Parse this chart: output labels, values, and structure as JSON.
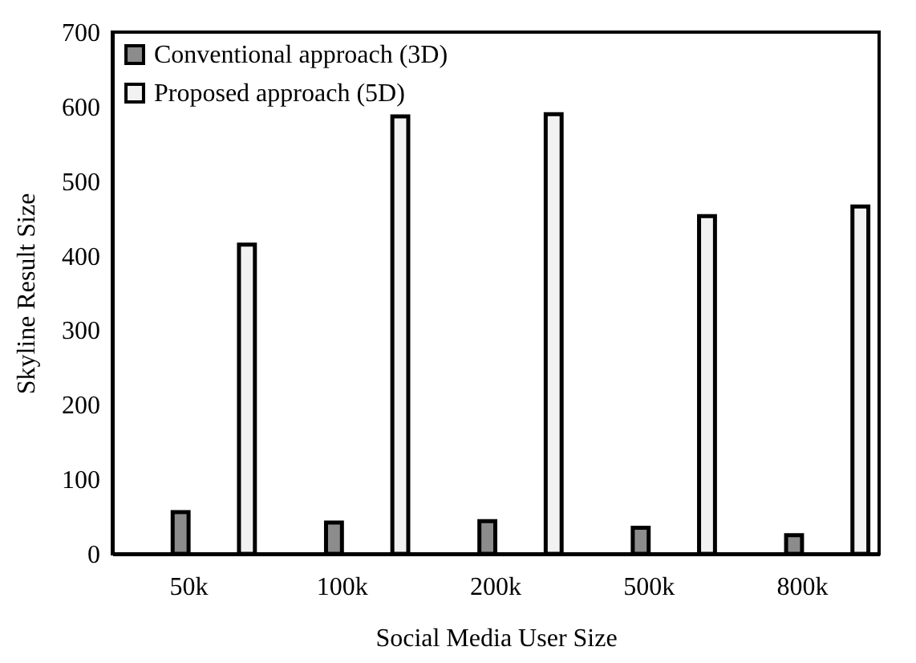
{
  "chart_data": {
    "type": "bar",
    "xlabel": "Social Media User Size",
    "ylabel": "Skyline  Result Size",
    "categories": [
      "50k",
      "100k",
      "200k",
      "500k",
      "800k"
    ],
    "series": [
      {
        "name": "Conventional approach (3D)",
        "color": "#8c8c8c",
        "values": [
          56,
          42,
          44,
          35,
          25
        ]
      },
      {
        "name": "Proposed approach (5D)",
        "color": "#f2f2f2",
        "values": [
          415,
          587,
          590,
          453,
          466
        ]
      }
    ],
    "ylim": [
      0,
      700
    ],
    "yticks": [
      0,
      100,
      200,
      300,
      400,
      500,
      600,
      700
    ],
    "grid": false,
    "legend": "top left"
  }
}
